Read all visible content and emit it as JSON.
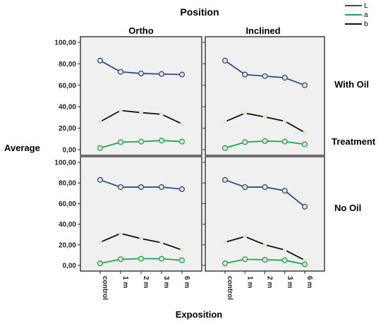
{
  "colors": {
    "L": "#2f4b8c",
    "a": "#1aa35a",
    "b": "#111111",
    "panel_bg": "#f0f0f0",
    "point_face": "#e8e6c8"
  },
  "labels": {
    "top_title": "Position",
    "col_ortho": "Ortho",
    "col_inclined": "Inclined",
    "row_with_oil": "With Oil",
    "row_no_oil": "No Oil",
    "row_title": "Treatment",
    "y_title": "Average",
    "x_title": "Exposition"
  },
  "legend": [
    {
      "key": "L"
    },
    {
      "key": "a"
    },
    {
      "key": "b"
    }
  ],
  "chart_data": [
    {
      "type": "line",
      "panel": "Ortho / With Oil",
      "x": [
        "control",
        "1 m",
        "2 m",
        "3 m",
        "6 m"
      ],
      "series": [
        {
          "name": "L",
          "values": [
            83,
            72.5,
            71,
            70.5,
            70
          ]
        },
        {
          "name": "a",
          "values": [
            1.5,
            7,
            7.5,
            8.5,
            7.5
          ]
        },
        {
          "name": "b",
          "values": [
            26,
            36.5,
            34.5,
            33,
            24
          ]
        }
      ],
      "ylim": [
        0,
        100
      ],
      "yticks": [
        "0,00",
        "20,00",
        "40,00",
        "60,00",
        "80,00",
        "100,00"
      ]
    },
    {
      "type": "line",
      "panel": "Inclined / With Oil",
      "x": [
        "control",
        "1 m",
        "2 m",
        "3 m",
        "6 m"
      ],
      "series": [
        {
          "name": "L",
          "values": [
            83,
            70,
            68.5,
            67,
            60
          ]
        },
        {
          "name": "a",
          "values": [
            1.5,
            7,
            8,
            7.5,
            5
          ]
        },
        {
          "name": "b",
          "values": [
            26,
            34,
            30.5,
            26.5,
            16
          ]
        }
      ],
      "ylim": [
        0,
        100
      ],
      "yticks": [
        "0,00",
        "20,00",
        "40,00",
        "60,00",
        "80,00",
        "100,00"
      ]
    },
    {
      "type": "line",
      "panel": "Ortho / No Oil",
      "x": [
        "control",
        "1 m",
        "2 m",
        "3 m",
        "6 m"
      ],
      "series": [
        {
          "name": "L",
          "values": [
            83,
            76,
            76,
            76,
            74
          ]
        },
        {
          "name": "a",
          "values": [
            2,
            6,
            6.5,
            6.5,
            5
          ]
        },
        {
          "name": "b",
          "values": [
            22.5,
            31,
            26,
            22,
            15
          ]
        }
      ],
      "ylim": [
        0,
        100
      ],
      "yticks": [
        "0,00",
        "20,00",
        "40,00",
        "60,00",
        "80,00",
        "100,00"
      ]
    },
    {
      "type": "line",
      "panel": "Inclined / No Oil",
      "x": [
        "control",
        "1 m",
        "2 m",
        "3 m",
        "6 m"
      ],
      "series": [
        {
          "name": "L",
          "values": [
            83,
            76,
            76,
            72.5,
            57
          ]
        },
        {
          "name": "a",
          "values": [
            2,
            6,
            5.5,
            5,
            1
          ]
        },
        {
          "name": "b",
          "values": [
            22.5,
            28,
            20,
            15,
            5
          ]
        }
      ],
      "ylim": [
        0,
        100
      ],
      "yticks": [
        "0,00",
        "20,00",
        "40,00",
        "60,00",
        "80,00",
        "100,00"
      ]
    }
  ]
}
